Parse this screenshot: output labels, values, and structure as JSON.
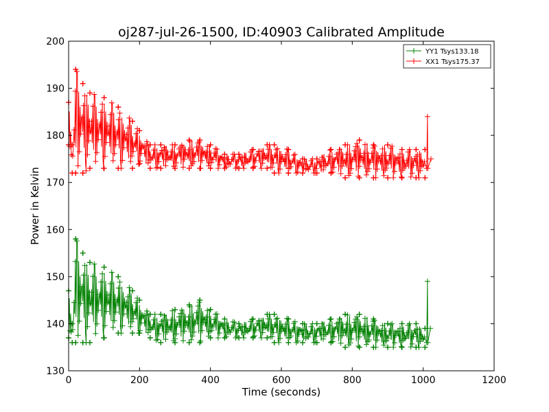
{
  "chart_data": {
    "type": "line",
    "title": "oj287-jul-26-1500, ID:40903 Calibrated Amplitude",
    "xlabel": "Time (seconds)",
    "ylabel": "Power in Kelvin",
    "xlim": [
      0,
      1200
    ],
    "ylim": [
      130,
      200
    ],
    "xticks": [
      0,
      200,
      400,
      600,
      800,
      1000,
      1200
    ],
    "yticks": [
      130,
      140,
      150,
      160,
      170,
      180,
      190,
      200
    ],
    "grid": false,
    "legend_position": "top-right",
    "marker": "+",
    "series": [
      {
        "name": "YY1 Tsys133.18",
        "color": "#008000",
        "envelope": {
          "x": [
            0,
            10,
            20,
            40,
            60,
            100,
            140,
            180,
            200,
            230,
            260,
            300,
            340,
            370,
            400,
            440,
            480,
            520,
            560,
            580,
            620,
            660,
            700,
            740,
            780,
            820,
            860,
            900,
            940,
            980,
            1005
          ],
          "upper": [
            147,
            140,
            158,
            155,
            153,
            152,
            150,
            147,
            145,
            142,
            142,
            143,
            144,
            145,
            143,
            141,
            140,
            141,
            142,
            142,
            141,
            140,
            140,
            141,
            142,
            142,
            141,
            140,
            140,
            140,
            139
          ],
          "lower": [
            137,
            136,
            136,
            136,
            136,
            137,
            138,
            138,
            138,
            137,
            136,
            136,
            136,
            136,
            137,
            137,
            137,
            137,
            137,
            136,
            136,
            136,
            136,
            136,
            135,
            135,
            135,
            135,
            135,
            135,
            135
          ]
        },
        "spike": {
          "x": 1012,
          "top": 149,
          "bottom": 136
        },
        "end": {
          "x": 1020,
          "y": 139
        }
      },
      {
        "name": "XX1 Tsys175.37",
        "color": "#ff0000",
        "envelope": {
          "x": [
            0,
            10,
            20,
            40,
            60,
            100,
            140,
            180,
            200,
            230,
            260,
            300,
            340,
            370,
            400,
            440,
            480,
            520,
            560,
            580,
            620,
            660,
            700,
            740,
            780,
            820,
            860,
            900,
            940,
            980,
            1005
          ],
          "upper": [
            187,
            178,
            194,
            191,
            189,
            188,
            186,
            183,
            181,
            178,
            178,
            178,
            179,
            179,
            178,
            176,
            176,
            177,
            178,
            178,
            177,
            175,
            175,
            177,
            178,
            179,
            178,
            178,
            177,
            177,
            177
          ],
          "lower": [
            178,
            172,
            172,
            172,
            173,
            173,
            173,
            173,
            174,
            173,
            173,
            173,
            173,
            173,
            173,
            173,
            173,
            173,
            173,
            172,
            172,
            172,
            172,
            172,
            171,
            171,
            171,
            171,
            171,
            171,
            171
          ]
        },
        "spike": {
          "x": 1012,
          "top": 184,
          "bottom": 173
        },
        "end": {
          "x": 1022,
          "y": 175
        }
      }
    ]
  }
}
